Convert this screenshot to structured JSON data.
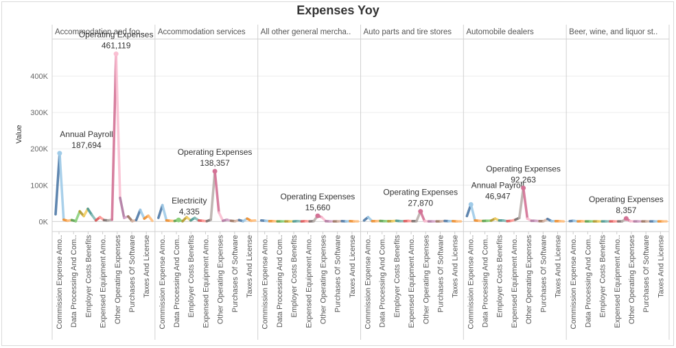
{
  "chart_data": {
    "type": "line",
    "title": "Expenses Yoy",
    "ylabel": "Value",
    "ylim": [
      -20000,
      500000
    ],
    "yticks": [
      {
        "value": 0,
        "label": "0K"
      },
      {
        "value": 100000,
        "label": "100K"
      },
      {
        "value": 200000,
        "label": "200K"
      },
      {
        "value": 300000,
        "label": "300K"
      },
      {
        "value": 400000,
        "label": "400K"
      }
    ],
    "grid": true,
    "x_labels": [
      {
        "label": "Commission Expense Amo..",
        "major": true
      },
      {
        "label": "",
        "major": false
      },
      {
        "label": "Data Processing And Com..",
        "major": true
      },
      {
        "label": "",
        "major": false
      },
      {
        "label": "Employer Costs Benefits",
        "major": true
      },
      {
        "label": "",
        "major": false
      },
      {
        "label": "Expensed Equipment Amo..",
        "major": true
      },
      {
        "label": "",
        "major": false
      },
      {
        "label": "Other Operating Expenses",
        "major": true
      },
      {
        "label": "",
        "major": false
      },
      {
        "label": "Purchases Of Software",
        "major": true
      },
      {
        "label": "",
        "major": false
      },
      {
        "label": "Taxes And License",
        "major": true
      },
      {
        "label": "",
        "major": false
      }
    ],
    "segment_colors": [
      "#4e79a7",
      "#a0cbe8",
      "#f28e2b",
      "#ffbe7d",
      "#59a14f",
      "#8cd17d",
      "#b6992d",
      "#f1ce63",
      "#499894",
      "#86bcb6",
      "#e15759",
      "#ff9d9a",
      "#79706e",
      "#bab0ac",
      "#d37295",
      "#fabfd2",
      "#b07aa1",
      "#d4a6c8",
      "#9d7660",
      "#d7b5a6"
    ],
    "panels": [
      {
        "name": "Accommodation and foo..",
        "values": [
          20000,
          187694,
          5000,
          2000,
          4000,
          1000,
          28000,
          15000,
          35000,
          18000,
          3000,
          12000,
          4000,
          3000,
          5000,
          461119,
          65000,
          10000,
          14000,
          1000,
          4000,
          32000,
          8000,
          16000,
          2000
        ],
        "annotations": [
          {
            "index": 1,
            "category": "Annual Payroll",
            "value": "187,694"
          },
          {
            "index": 15,
            "category": "Operating Expenses",
            "value": "461,119"
          }
        ]
      },
      {
        "name": "Accommodation services",
        "values": [
          10000,
          45000,
          3000,
          2000,
          1500,
          4335,
          1000,
          12000,
          3000,
          10000,
          3000,
          2000,
          1000,
          5000,
          138357,
          25000,
          2000,
          5000,
          2000,
          1000,
          4000,
          1000,
          8000,
          2000,
          3000
        ],
        "annotations": [
          {
            "index": 5,
            "category": "Electricity",
            "value": "4,335"
          },
          {
            "index": 14,
            "category": "Operating Expenses",
            "value": "138,357"
          }
        ]
      },
      {
        "name": "All other general mercha..",
        "values": [
          3000,
          2000,
          1000,
          1000,
          500,
          500,
          500,
          500,
          500,
          1000,
          500,
          1000,
          500,
          1000,
          15660,
          12000,
          1000,
          500,
          500,
          500,
          1000,
          500,
          1000,
          500,
          500
        ],
        "annotations": [
          {
            "index": 14,
            "category": "Operating Expenses",
            "value": "15,660"
          }
        ]
      },
      {
        "name": "Auto parts and tire stores",
        "values": [
          3000,
          12000,
          1000,
          1000,
          1500,
          1000,
          800,
          1000,
          2000,
          1000,
          1000,
          1500,
          1000,
          1000,
          27870,
          1000,
          500,
          500,
          500,
          500,
          1500,
          1000,
          1000,
          500,
          500
        ],
        "annotations": [
          {
            "index": 14,
            "category": "Operating Expenses",
            "value": "27,870"
          }
        ]
      },
      {
        "name": "Automobile dealers",
        "values": [
          15000,
          46947,
          3000,
          2000,
          1500,
          2000,
          2500,
          8000,
          3000,
          3000,
          1000,
          2000,
          5000,
          10000,
          92263,
          8000,
          2000,
          2000,
          1000,
          1000,
          7000,
          1000,
          1000,
          1000,
          500
        ],
        "annotations": [
          {
            "index": 1,
            "category": "Annual Payroll",
            "value": "46,947"
          },
          {
            "index": 14,
            "category": "Operating Expenses",
            "value": "92,263"
          }
        ]
      },
      {
        "name": "Beer, wine, and liquor st..",
        "values": [
          1000,
          2000,
          500,
          800,
          500,
          500,
          500,
          500,
          500,
          500,
          500,
          500,
          500,
          500,
          8357,
          1000,
          500,
          500,
          500,
          500,
          500,
          500,
          500,
          500,
          500
        ],
        "annotations": [
          {
            "index": 14,
            "category": "Operating Expenses",
            "value": "8,357"
          }
        ]
      }
    ]
  }
}
